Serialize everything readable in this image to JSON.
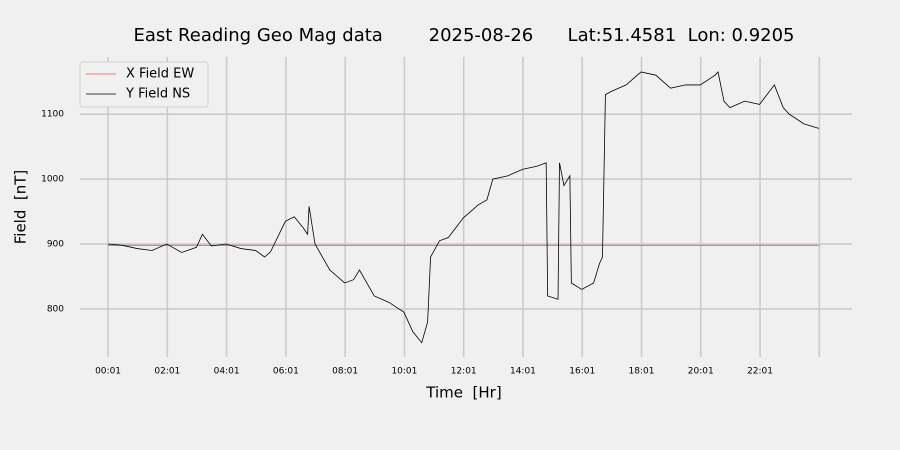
{
  "chart_data": {
    "type": "line",
    "title": "East Reading Geo Mag data        2025-08-26      Lat:51.4581  Lon: 0.9205",
    "x_label": "Time  [Hr]",
    "y_label": "Field  [nT]",
    "x": [
      0.0167,
      0.5,
      1,
      1.5,
      2,
      2.5,
      3,
      3.2,
      3.5,
      4,
      4.5,
      5,
      5.3,
      5.5,
      6,
      6.3,
      6.6,
      6.75,
      6.8,
      7,
      7.5,
      8,
      8.3,
      8.5,
      9,
      9.5,
      10,
      10.3,
      10.6,
      10.8,
      10.9,
      11.2,
      11.5,
      12,
      12.5,
      12.8,
      13,
      13.5,
      14,
      14.5,
      14.8,
      14.85,
      15.2,
      15.25,
      15.4,
      15.6,
      15.65,
      16,
      16.4,
      16.6,
      16.7,
      16.8,
      17,
      17.5,
      18,
      18.5,
      19,
      19.5,
      20,
      20.5,
      20.6,
      20.8,
      21,
      21.5,
      22,
      22.5,
      22.8,
      23,
      23.5,
      24
    ],
    "series": [
      {
        "name": "X Field EW",
        "color": "#e8544e",
        "values": [
          898,
          898,
          898,
          898,
          898,
          898,
          898,
          898,
          898,
          898,
          898,
          898,
          898,
          898,
          898,
          898,
          898,
          898,
          898,
          898,
          898,
          898,
          898,
          898,
          898,
          898,
          898,
          898,
          898,
          898,
          898,
          898,
          898,
          898,
          898,
          898,
          898,
          898,
          898,
          898,
          898,
          898,
          898,
          898,
          898,
          898,
          898,
          898,
          898,
          898,
          898,
          898,
          898,
          898,
          898,
          898,
          898,
          898,
          898,
          898,
          898,
          898,
          898,
          898,
          898,
          898,
          898,
          898,
          898,
          898
        ]
      },
      {
        "name": "Y Field NS",
        "color": "#000000",
        "values": [
          900,
          898,
          893,
          890,
          900,
          887,
          895,
          915,
          897,
          900,
          893,
          890,
          880,
          888,
          935,
          942,
          925,
          915,
          958,
          900,
          860,
          840,
          845,
          860,
          820,
          810,
          795,
          765,
          748,
          780,
          880,
          905,
          910,
          940,
          960,
          968,
          1000,
          1005,
          1015,
          1020,
          1025,
          820,
          815,
          1025,
          990,
          1005,
          840,
          830,
          840,
          870,
          880,
          1130,
          1135,
          1145,
          1165,
          1160,
          1140,
          1145,
          1145,
          1160,
          1165,
          1120,
          1110,
          1120,
          1115,
          1145,
          1110,
          1100,
          1085,
          1078
        ]
      }
    ],
    "xlim": [
      -0.93,
      25.12
    ],
    "ylim": [
      726,
      1188
    ],
    "xticks": [
      {
        "value": 0.0167,
        "label": "00:01"
      },
      {
        "value": 2.0167,
        "label": "02:01"
      },
      {
        "value": 4.0167,
        "label": "04:01"
      },
      {
        "value": 6.0167,
        "label": "06:01"
      },
      {
        "value": 8.0167,
        "label": "08:01"
      },
      {
        "value": 10.0167,
        "label": "10:01"
      },
      {
        "value": 12.0167,
        "label": "12:01"
      },
      {
        "value": 14.0167,
        "label": "14:01"
      },
      {
        "value": 16.0167,
        "label": "16:01"
      },
      {
        "value": 18.0167,
        "label": "18:01"
      },
      {
        "value": 20.0167,
        "label": "20:01"
      },
      {
        "value": 22.0167,
        "label": "22:01"
      },
      {
        "value": 24.0167,
        "label": null
      }
    ],
    "yticks": [
      800,
      900,
      1000,
      1100
    ],
    "grid": true,
    "legend": "upper left"
  }
}
